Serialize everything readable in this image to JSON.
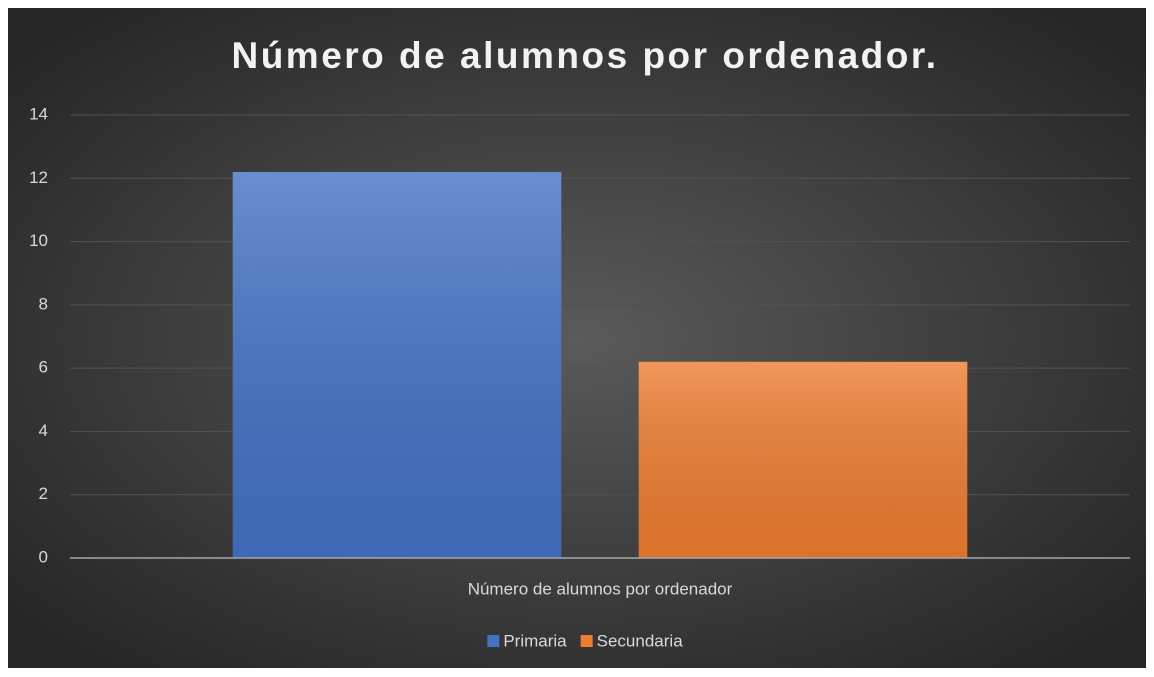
{
  "chart_data": {
    "type": "bar",
    "title": "Número de alumnos por ordenador.",
    "categories": [
      "Número de alumnos por ordenador"
    ],
    "series": [
      {
        "name": "Primaria",
        "color": "#4472c4",
        "values": [
          12.2
        ]
      },
      {
        "name": "Secundaria",
        "color": "#ed7d31",
        "values": [
          6.2
        ]
      }
    ],
    "ylim": [
      0,
      14
    ],
    "yticks": [
      0,
      2,
      4,
      6,
      8,
      10,
      12,
      14
    ],
    "grid": true,
    "legend": "bottom"
  }
}
